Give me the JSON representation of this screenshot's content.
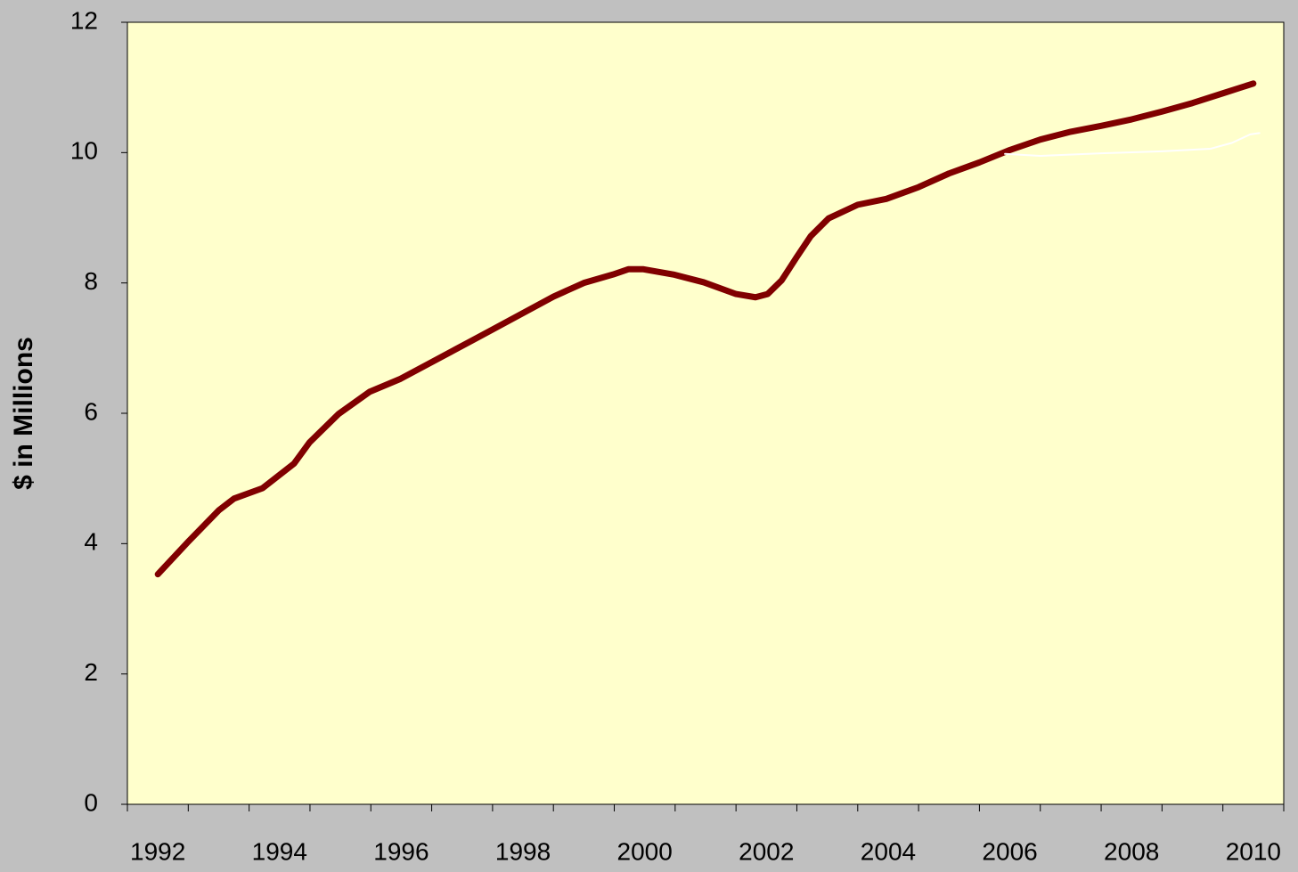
{
  "chart_data": {
    "type": "line",
    "y_label": "$ in Millions",
    "xlim": [
      1991.5,
      2010.5
    ],
    "xticks": [
      1992,
      1994,
      1996,
      1998,
      2000,
      2002,
      2004,
      2006,
      2008,
      2010
    ],
    "ylim": [
      0,
      12
    ],
    "yticks": [
      0,
      2,
      4,
      6,
      8,
      10,
      12
    ],
    "grid": false,
    "background": "#ffffcc",
    "series": [
      {
        "color": "#800000",
        "x": [
          1992.0,
          1992.5,
          1993.0,
          1993.25,
          1993.72,
          1994.24,
          1994.49,
          1994.97,
          1995.48,
          1995.99,
          1996.49,
          1997.49,
          1998.5,
          1999.0,
          1999.48,
          1999.73,
          1999.98,
          2000.47,
          2000.97,
          2001.5,
          2001.82,
          2002.02,
          2002.25,
          2002.5,
          2002.73,
          2003.02,
          2003.5,
          2003.97,
          2004.5,
          2005.0,
          2005.5,
          2006.0,
          2006.5,
          2007.0,
          2007.5,
          2008.0,
          2008.5,
          2009.0,
          2009.5,
          2010.0
        ],
        "values": [
          3.53,
          4.03,
          4.51,
          4.69,
          4.85,
          5.23,
          5.55,
          5.99,
          6.33,
          6.53,
          6.78,
          7.28,
          7.79,
          8.0,
          8.13,
          8.21,
          8.21,
          8.13,
          8.01,
          7.83,
          7.78,
          7.83,
          8.04,
          8.4,
          8.72,
          8.99,
          9.2,
          9.29,
          9.47,
          9.68,
          9.85,
          10.04,
          10.2,
          10.32,
          10.41,
          10.51,
          10.63,
          10.76,
          10.91,
          11.06
        ]
      },
      {
        "color": "#ffffff",
        "x": [
          2005.92,
          2006.5,
          2007.5,
          2008.5,
          2009.3,
          2009.65,
          2009.95,
          2010.1
        ],
        "values": [
          9.98,
          9.95,
          9.99,
          10.02,
          10.06,
          10.15,
          10.28,
          10.3
        ]
      }
    ]
  }
}
